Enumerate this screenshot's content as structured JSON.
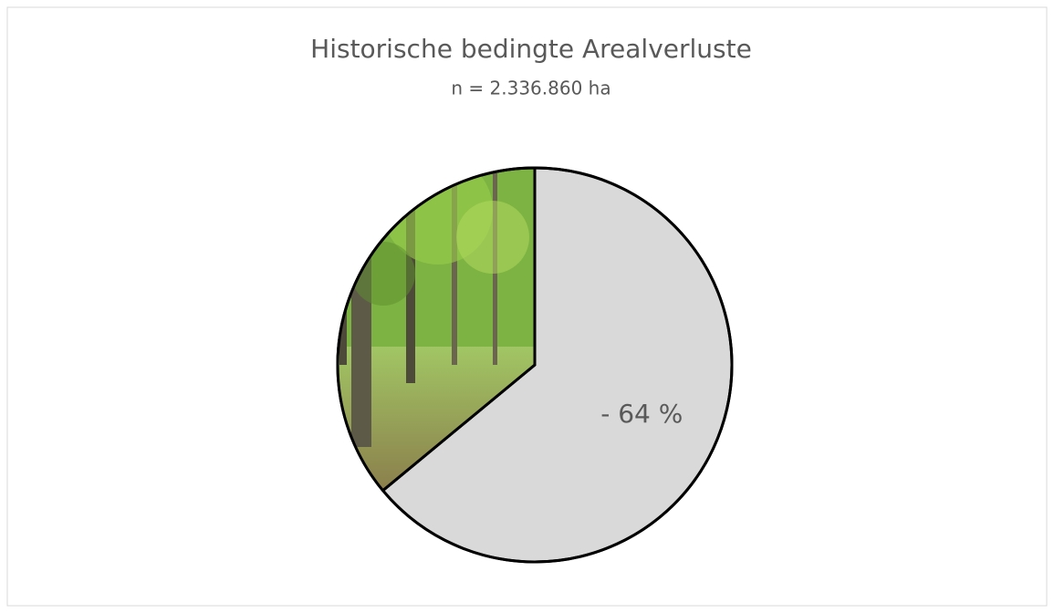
{
  "chart_data": {
    "type": "pie",
    "title": "Historische bedingte Arealverluste",
    "subtitle": "n = 2.336.860 ha",
    "values": [
      64,
      36
    ],
    "value_labels": [
      "- 64 %",
      null
    ],
    "colors": [
      "#d9d9d9",
      "#7cb342"
    ]
  }
}
